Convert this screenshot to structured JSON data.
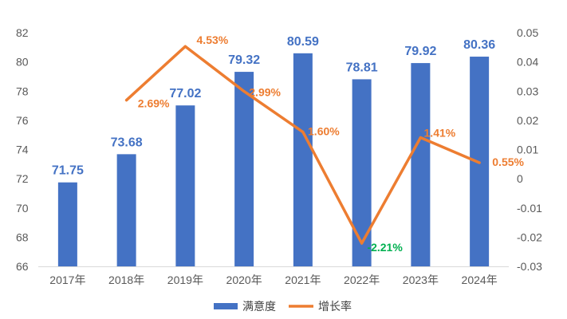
{
  "chart_data": {
    "type": "bar",
    "categories": [
      "2017年",
      "2018年",
      "2019年",
      "2020年",
      "2021年",
      "2022年",
      "2023年",
      "2024年"
    ],
    "series": [
      {
        "name": "满意度",
        "type": "bar",
        "axis": "left",
        "color": "#4472C4",
        "values": [
          71.75,
          73.68,
          77.02,
          79.32,
          80.59,
          78.81,
          79.92,
          80.36
        ],
        "labels": [
          "71.75",
          "73.68",
          "77.02",
          "79.32",
          "80.59",
          "78.81",
          "79.92",
          "80.36"
        ]
      },
      {
        "name": "增长率",
        "type": "line",
        "axis": "right",
        "color": "#ED7D31",
        "values": [
          null,
          0.0269,
          0.0453,
          0.0299,
          0.016,
          -0.0221,
          0.0141,
          0.0055
        ],
        "labels": [
          null,
          "2.69%",
          "4.53%",
          "2.99%",
          "1.60%",
          "-2.21%",
          "1.41%",
          "0.55%"
        ],
        "label_colors": [
          null,
          "#ED7D31",
          "#ED7D31",
          "#ED7D31",
          "#ED7D31",
          "#00B050",
          "#ED7D31",
          "#ED7D31"
        ]
      }
    ],
    "y_left": {
      "min": 66,
      "max": 82,
      "ticks": [
        "66",
        "68",
        "70",
        "72",
        "74",
        "76",
        "78",
        "80",
        "82"
      ]
    },
    "y_right": {
      "min": -0.03,
      "max": 0.05,
      "ticks": [
        "-0.03",
        "-0.02",
        "-0.01",
        "0",
        "0.01",
        "0.02",
        "0.03",
        "0.04",
        "0.05"
      ]
    },
    "legend_position": "bottom-center",
    "grid": false
  }
}
